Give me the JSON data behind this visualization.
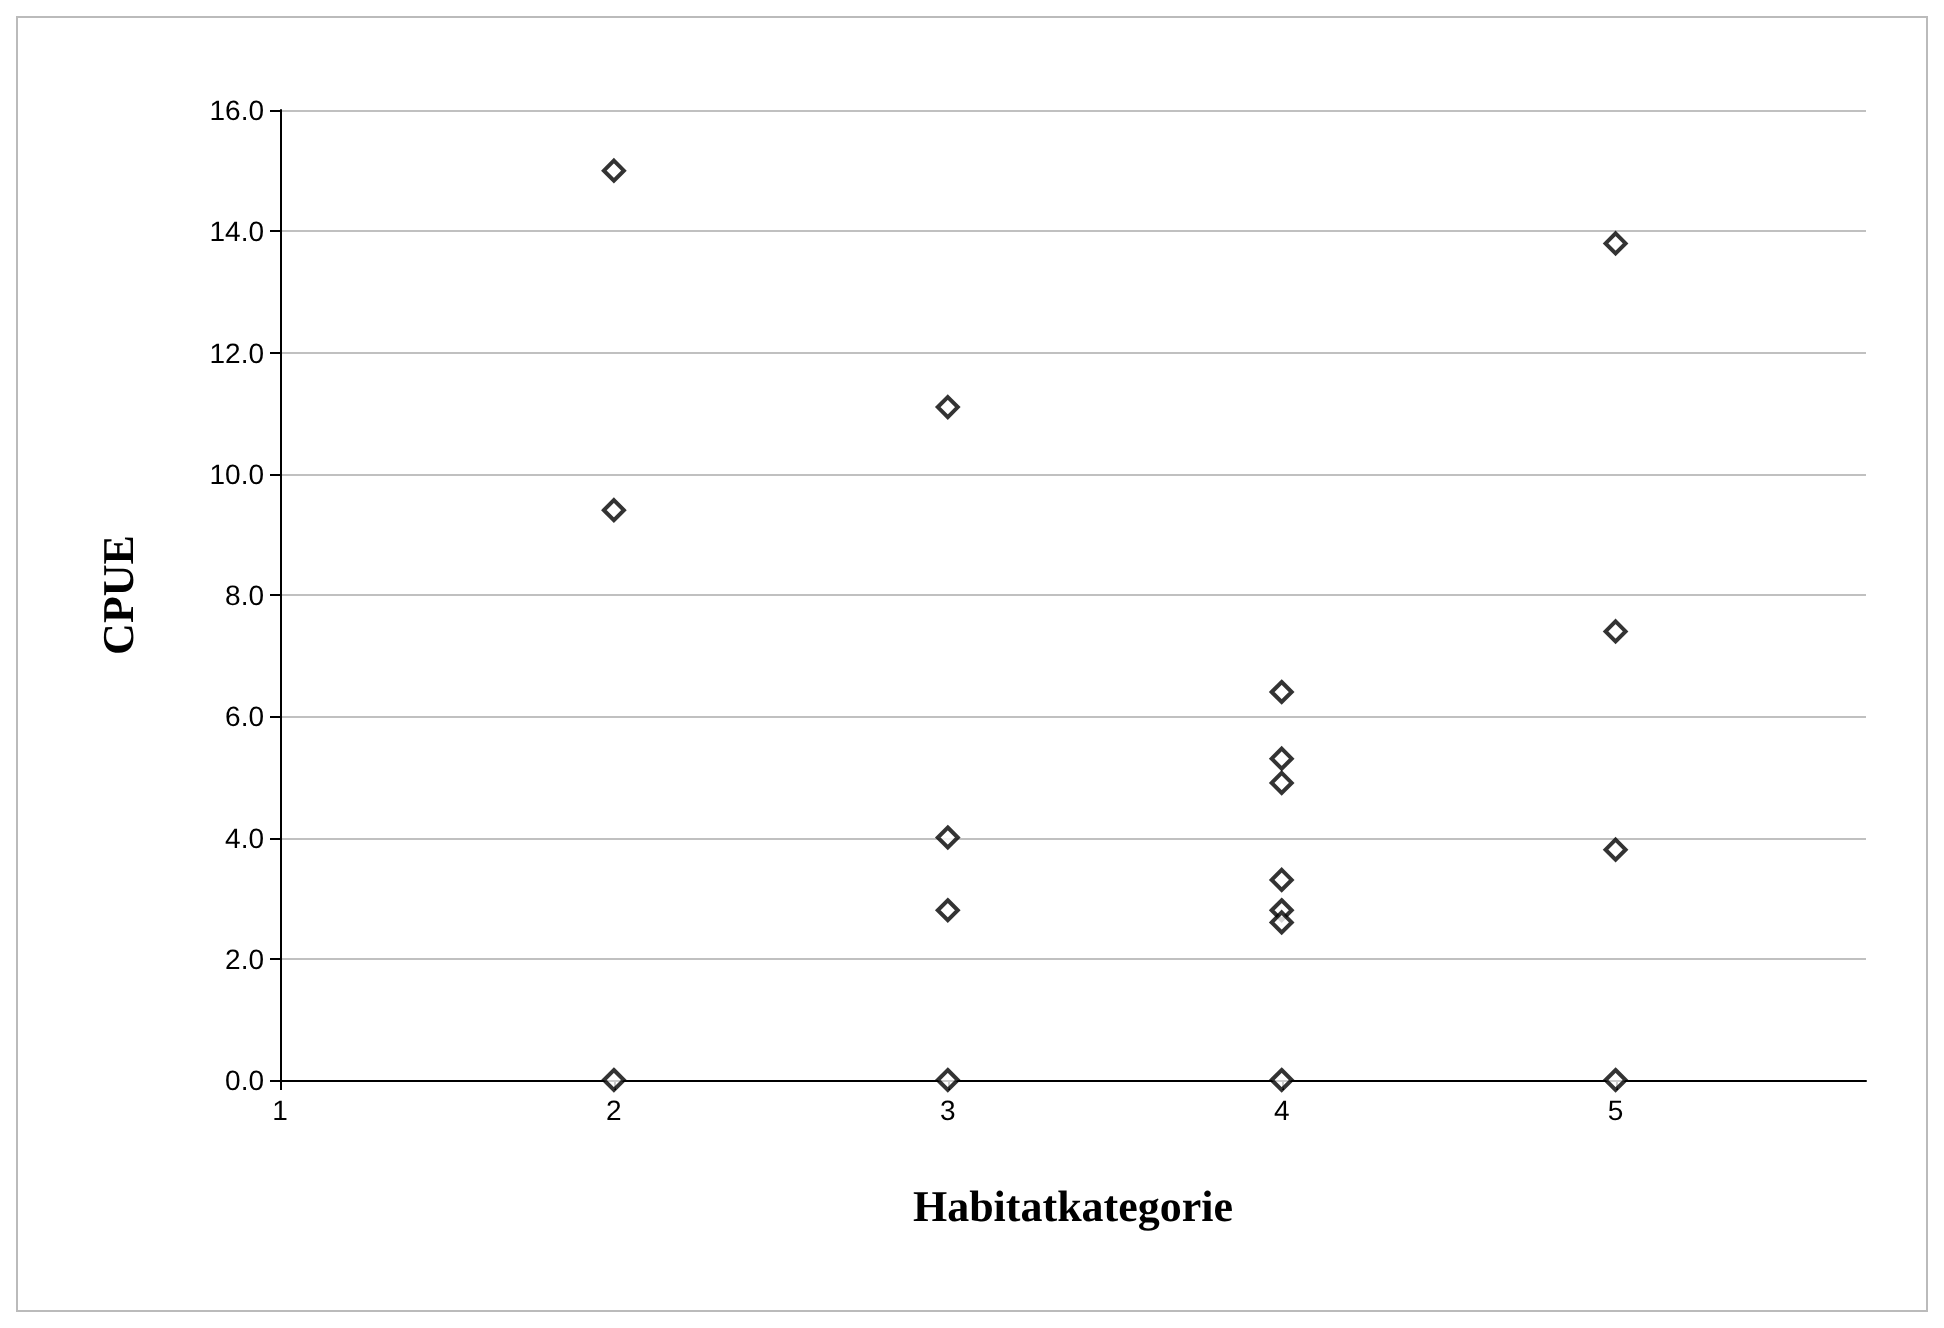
{
  "chart_data": {
    "type": "scatter",
    "xlabel": "Habitatkategorie",
    "ylabel": "CPUE",
    "x": [
      2,
      2,
      2,
      3,
      3,
      3,
      3,
      4,
      4,
      4,
      4,
      4,
      4,
      4,
      5,
      5,
      5,
      5
    ],
    "values": [
      15.0,
      9.4,
      0,
      11.1,
      4.0,
      2.8,
      0,
      6.4,
      5.3,
      4.9,
      3.3,
      2.8,
      2.6,
      0,
      13.8,
      7.4,
      3.8,
      0
    ],
    "color": "#000000",
    "marker": "diamond",
    "grid": "y",
    "xlim": [
      1,
      5.75
    ],
    "xticks": [
      1,
      2,
      3,
      4,
      5
    ],
    "ylim": [
      0,
      16
    ],
    "yticks": [
      {
        "value": 0,
        "label": "0.0"
      },
      {
        "value": 2,
        "label": "2.0"
      },
      {
        "value": 4,
        "label": "4.0"
      },
      {
        "value": 6,
        "label": "6.0"
      },
      {
        "value": 8,
        "label": "8.0"
      },
      {
        "value": 10,
        "label": "10.0"
      },
      {
        "value": 12,
        "label": "12.0"
      },
      {
        "value": 14,
        "label": "14.0"
      },
      {
        "value": 16,
        "label": "16.0"
      }
    ]
  }
}
